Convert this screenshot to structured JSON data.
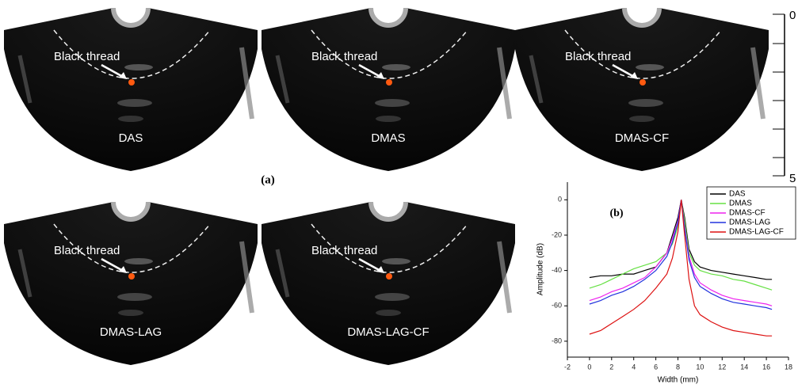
{
  "panels": [
    {
      "label": "DAS",
      "annotation": "Black thread"
    },
    {
      "label": "DMAS",
      "annotation": "Black thread"
    },
    {
      "label": "DMAS-CF",
      "annotation": "Black thread"
    },
    {
      "label": "DMAS-LAG",
      "annotation": "Black thread"
    },
    {
      "label": "DMAS-LAG-CF",
      "annotation": "Black thread"
    }
  ],
  "label_a": "(a)",
  "scale_bar": {
    "labels": [
      "0",
      "5"
    ]
  },
  "chart_data": {
    "type": "line",
    "title": "(b)",
    "x_label": "Width (mm)",
    "y_label": "Amplitude (dB)",
    "x": [
      0,
      1,
      2,
      3,
      4,
      5,
      6,
      7,
      7.5,
      8,
      8.3,
      8.6,
      9,
      9.5,
      10,
      11,
      12,
      13,
      14,
      15,
      16,
      16.5
    ],
    "series": [
      {
        "name": "DAS",
        "color": "#000000",
        "values": [
          -44,
          -43,
          -43,
          -42,
          -42,
          -40,
          -38,
          -30,
          -20,
          -10,
          0,
          -10,
          -28,
          -35,
          -38,
          -40,
          -41,
          -42,
          -43,
          -44,
          -45,
          -45
        ]
      },
      {
        "name": "DMAS",
        "color": "#66e044",
        "values": [
          -50,
          -48,
          -45,
          -42,
          -39,
          -37,
          -35,
          -30,
          -25,
          -15,
          0,
          -12,
          -30,
          -37,
          -40,
          -42,
          -43,
          -45,
          -46,
          -48,
          -50,
          -51
        ]
      },
      {
        "name": "DMAS-CF",
        "color": "#ee22ee",
        "values": [
          -57,
          -55,
          -52,
          -50,
          -47,
          -44,
          -38,
          -30,
          -22,
          -12,
          0,
          -15,
          -32,
          -42,
          -47,
          -51,
          -54,
          -56,
          -57,
          -58,
          -59,
          -60
        ]
      },
      {
        "name": "DMAS-LAG",
        "color": "#2233dd",
        "values": [
          -59,
          -57,
          -54,
          -52,
          -49,
          -45,
          -40,
          -32,
          -24,
          -13,
          0,
          -16,
          -34,
          -44,
          -49,
          -53,
          -56,
          -58,
          -59,
          -60,
          -61,
          -62
        ]
      },
      {
        "name": "DMAS-LAG-CF",
        "color": "#dd1111",
        "values": [
          -76,
          -74,
          -70,
          -66,
          -62,
          -57,
          -50,
          -42,
          -33,
          -18,
          0,
          -20,
          -45,
          -60,
          -65,
          -69,
          -72,
          -74,
          -75,
          -76,
          -77,
          -77
        ]
      }
    ],
    "xlim": [
      -2,
      18
    ],
    "xticks": [
      -2,
      0,
      2,
      4,
      6,
      8,
      10,
      12,
      14,
      16,
      18
    ],
    "ylim": [
      -89,
      10
    ],
    "yticks": [
      0,
      -20,
      -40,
      -60,
      -80
    ],
    "legend": "upper right"
  }
}
